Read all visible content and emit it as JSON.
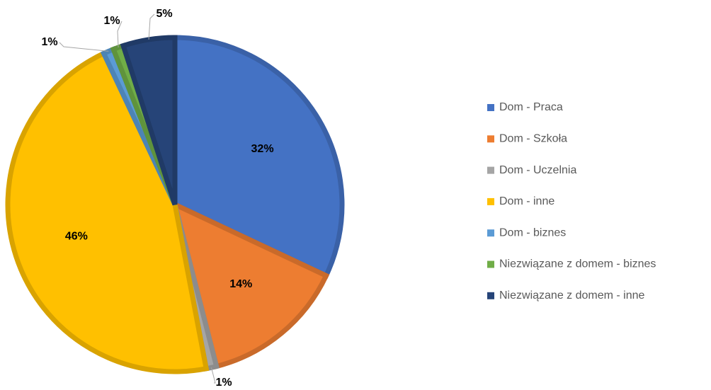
{
  "chart_data": {
    "type": "pie",
    "categories": [
      "Dom - Praca",
      "Dom - Szkoła",
      "Dom - Uczelnia",
      "Dom - inne",
      "Dom - biznes",
      "Niezwiązane z domem - biznes",
      "Niezwiązane z domem - inne"
    ],
    "values": [
      32,
      14,
      1,
      46,
      1,
      1,
      5
    ],
    "value_labels": [
      "32%",
      "14%",
      "1%",
      "46%",
      "1%",
      "1%",
      "5%"
    ],
    "colors": [
      "#4472c4",
      "#ed7d31",
      "#a5a5a5",
      "#ffc000",
      "#5b9bd5",
      "#70ad47",
      "#264478"
    ],
    "legend": "right"
  }
}
